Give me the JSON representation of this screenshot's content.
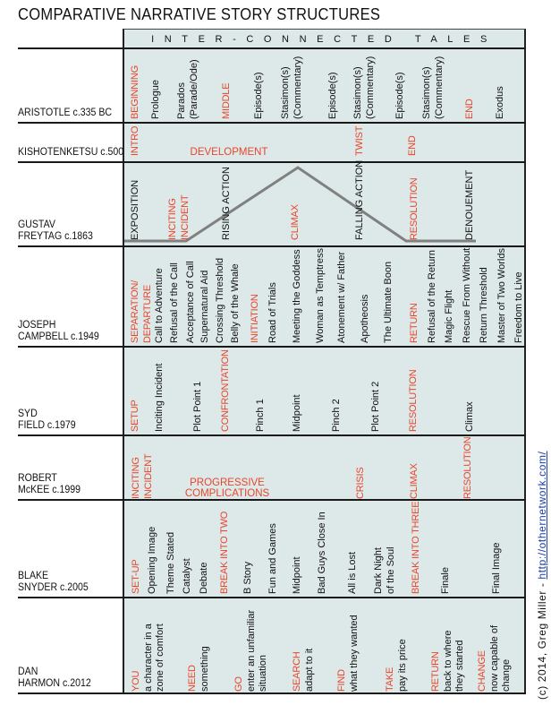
{
  "title": "COMPARATIVE NARRATIVE STORY STRUCTURES",
  "header": "INTER-CONNECTED TALES",
  "colors": {
    "stage": "#e8452c",
    "beat": "#111111",
    "panel": "#dde9e8",
    "arc": "#808080",
    "link": "#1a3fa8"
  },
  "credit": {
    "text": "(c) 2014, Greg Miller - ",
    "link": "http://othernetwork.com/"
  },
  "rows": [
    {
      "name": [
        "ARISTOTLE c.335 BC"
      ],
      "items": [
        {
          "stage": [
            "BEGINNING"
          ]
        },
        {
          "beat": [
            "Prologue"
          ]
        },
        {
          "beat": [
            "Parados",
            "(Parade/Ode)"
          ]
        },
        {
          "stage": [
            "MIDDLE"
          ]
        },
        {
          "beat": [
            "Episode(s)"
          ]
        },
        {
          "beat": [
            "Stasimon(s)",
            "(Commentary)"
          ]
        },
        {
          "beat": [
            "Episode(s)"
          ]
        },
        {
          "beat": [
            "Stasimon(s)",
            "(Commentary)"
          ]
        },
        {
          "beat": [
            "Episode(s)"
          ]
        },
        {
          "beat": [
            "Stasimon(s)",
            "(Commentary)"
          ]
        },
        {
          "stage": [
            "END"
          ]
        },
        {
          "beat": [
            "Exodus"
          ]
        }
      ]
    },
    {
      "name": [
        "KISHOTENKETSU c.500"
      ],
      "items": [
        {
          "stage": [
            "INTRO"
          ]
        },
        {
          "stage": [
            "TWIST"
          ]
        },
        {
          "stage": [
            "END"
          ]
        }
      ],
      "span_labels": [
        [
          "DEVELOPMENT"
        ]
      ]
    },
    {
      "name": [
        "GUSTAV",
        "FREYTAG c.1863"
      ],
      "items": [
        {
          "beat": [
            "EXPOSITION"
          ]
        },
        {
          "stage": [
            "INCITING",
            "INCIDENT"
          ]
        },
        {
          "beat": [
            "RISING ACTION"
          ]
        },
        {
          "stage": [
            "CLIMAX"
          ]
        },
        {
          "beat": [
            "FALLING ACTION"
          ]
        },
        {
          "stage": [
            "RESOLUTION"
          ]
        },
        {
          "beat": [
            "DENOUEMENT"
          ]
        }
      ]
    },
    {
      "name": [
        "JOSEPH",
        "CAMPBELL c.1949"
      ],
      "items": [
        {
          "stage": [
            "SEPARATION/",
            "DEPARTURE"
          ]
        },
        {
          "beat": [
            "Call to Adventure"
          ]
        },
        {
          "beat": [
            "Refusal of the Call"
          ]
        },
        {
          "beat": [
            "Acceptance of Call"
          ]
        },
        {
          "beat": [
            "Supernatural Aid"
          ]
        },
        {
          "beat": [
            "Crossing Threshold"
          ]
        },
        {
          "beat": [
            "Belly of the Whale"
          ]
        },
        {
          "stage": [
            "INITIATION"
          ]
        },
        {
          "beat": [
            "Road of Trials"
          ]
        },
        {
          "beat": [
            "Meeting the Goddess"
          ]
        },
        {
          "beat": [
            "Woman as Temptress"
          ]
        },
        {
          "beat": [
            "Atonement w/ Father"
          ]
        },
        {
          "beat": [
            "Apotheosis"
          ]
        },
        {
          "beat": [
            "The Ultimate Boon"
          ]
        },
        {
          "stage": [
            "RETURN"
          ]
        },
        {
          "beat": [
            "Refusal of the Return"
          ]
        },
        {
          "beat": [
            "Magic Flight"
          ]
        },
        {
          "beat": [
            "Rescue From Without"
          ]
        },
        {
          "beat": [
            "Return Threshold"
          ]
        },
        {
          "beat": [
            "Master of Two Worlds"
          ]
        },
        {
          "beat": [
            "Freedom to Live"
          ]
        }
      ]
    },
    {
      "name": [
        "SYD",
        "FIELD c.1979"
      ],
      "items": [
        {
          "stage": [
            "SETUP"
          ]
        },
        {
          "beat": [
            "Inciting Incident"
          ]
        },
        {
          "beat": [
            "Plot Point 1"
          ]
        },
        {
          "stage": [
            "CONFRONTATION"
          ]
        },
        {
          "beat": [
            "Pinch 1"
          ]
        },
        {
          "beat": [
            "Midpoint"
          ]
        },
        {
          "beat": [
            "Pinch 2"
          ]
        },
        {
          "beat": [
            "Plot Point 2"
          ]
        },
        {
          "stage": [
            "RESOLUTION"
          ]
        },
        {
          "beat": [
            "Climax"
          ]
        }
      ]
    },
    {
      "name": [
        "ROBERT",
        "McKEE c.1999"
      ],
      "items": [
        {
          "stage": [
            "INCITING",
            "INCIDENT"
          ]
        },
        {
          "stage": [
            "CRISIS"
          ]
        },
        {
          "stage": [
            "CLIMAX"
          ]
        },
        {
          "stage": [
            "RESOLUTION"
          ]
        }
      ],
      "span_labels": [
        [
          "PROGRESSIVE",
          "COMPLICATIONS"
        ]
      ]
    },
    {
      "name": [
        "BLAKE",
        "SNYDER c.2005"
      ],
      "items": [
        {
          "stage": [
            "SET-UP"
          ]
        },
        {
          "beat": [
            "Opening Image"
          ]
        },
        {
          "beat": [
            "Theme Stated"
          ]
        },
        {
          "beat": [
            "Catalyst"
          ]
        },
        {
          "beat": [
            "Debate"
          ]
        },
        {
          "stage": [
            "BREAK INTO TWO"
          ]
        },
        {
          "beat": [
            "B Story"
          ]
        },
        {
          "beat": [
            "Fun and Games"
          ]
        },
        {
          "beat": [
            "Midpoint"
          ]
        },
        {
          "beat": [
            "Bad Guys Close In"
          ]
        },
        {
          "beat": [
            "All is Lost"
          ]
        },
        {
          "beat": [
            "Dark Night",
            "of the Soul"
          ]
        },
        {
          "stage": [
            "BREAK INTO THREE"
          ]
        },
        {
          "beat": [
            "Finale"
          ]
        },
        {
          "beat": [
            "Final Image"
          ]
        }
      ]
    },
    {
      "name": [
        "DAN",
        "HARMON c.2012"
      ],
      "items": [
        {
          "stage": [
            "YOU"
          ],
          "beat": [
            "a character in a",
            "zone of comfort"
          ]
        },
        {
          "stage": [
            "NEED"
          ],
          "beat": [
            "something"
          ]
        },
        {
          "stage": [
            "GO"
          ],
          "beat": [
            "enter an unfamiliar",
            "situation"
          ]
        },
        {
          "stage": [
            "SEARCH"
          ],
          "beat": [
            "adapt to it"
          ]
        },
        {
          "stage": [
            "FIND"
          ],
          "beat": [
            "what they wanted"
          ]
        },
        {
          "stage": [
            "TAKE"
          ],
          "beat": [
            "pay its price"
          ]
        },
        {
          "stage": [
            "RETURN"
          ],
          "beat": [
            "back to where",
            "they started"
          ]
        },
        {
          "stage": [
            "CHANGE"
          ],
          "beat": [
            "now capable of",
            "change"
          ]
        }
      ]
    }
  ]
}
